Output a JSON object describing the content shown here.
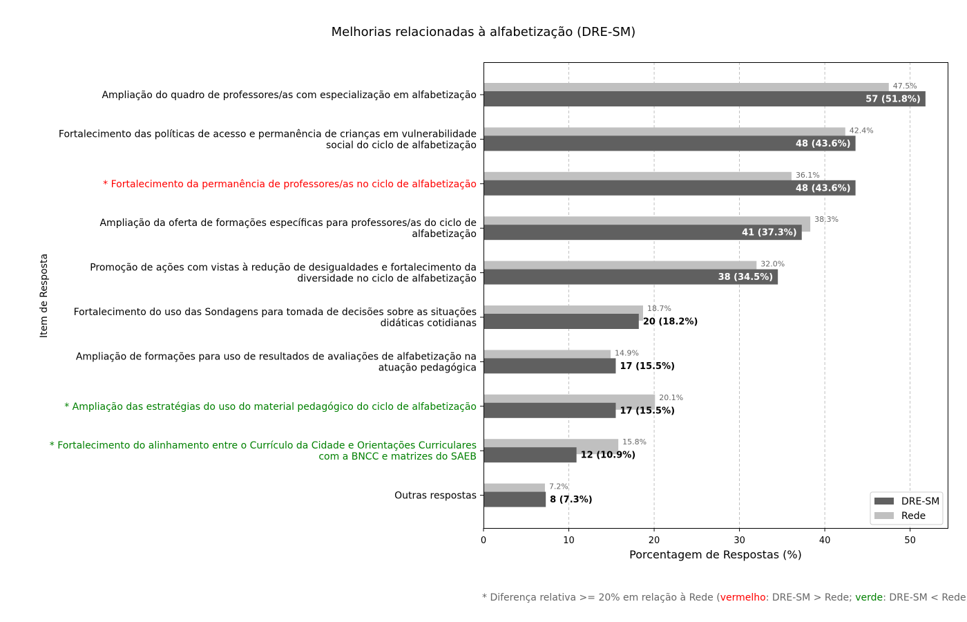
{
  "chart_data": {
    "type": "bar",
    "orientation": "horizontal",
    "title": "Melhorias relacionadas à alfabetização (DRE-SM)",
    "xlabel": "Porcentagem de Respostas (%)",
    "ylabel": "Item de Resposta",
    "xlim": [
      0,
      54.4
    ],
    "xticks": [
      0,
      10,
      20,
      30,
      40,
      50
    ],
    "grid": "x-dashed",
    "legend_position": "bottom-right",
    "categories": [
      {
        "lines": [
          "Ampliação do quadro de professores/as com especialização em alfabetização"
        ],
        "color": "#000000"
      },
      {
        "lines": [
          "Fortalecimento das políticas de acesso e permanência de crianças em vulnerabilidade",
          "social do ciclo de alfabetização"
        ],
        "color": "#000000"
      },
      {
        "lines": [
          "* Fortalecimento da permanência de professores/as no ciclo de alfabetização"
        ],
        "color": "#ff0000"
      },
      {
        "lines": [
          "Ampliação da oferta de formações específicas para professores/as do ciclo de",
          "alfabetização"
        ],
        "color": "#000000"
      },
      {
        "lines": [
          "Promoção de ações com vistas à redução de desigualdades e fortalecimento da",
          "diversidade no ciclo de alfabetização"
        ],
        "color": "#000000"
      },
      {
        "lines": [
          "Fortalecimento do uso das Sondagens para tomada de decisões sobre as situações",
          "didáticas cotidianas"
        ],
        "color": "#000000"
      },
      {
        "lines": [
          "Ampliação de formações para uso de resultados de avaliações de alfabetização na",
          "atuação pedagógica"
        ],
        "color": "#000000"
      },
      {
        "lines": [
          "* Ampliação das estratégias do uso do material pedagógico do ciclo de alfabetização"
        ],
        "color": "#008000"
      },
      {
        "lines": [
          "* Fortalecimento do alinhamento entre o Currículo da Cidade e Orientações Curriculares",
          "com a BNCC e matrizes do SAEB"
        ],
        "color": "#008000"
      },
      {
        "lines": [
          "Outras respostas"
        ],
        "color": "#000000"
      }
    ],
    "series": [
      {
        "name": "DRE-SM",
        "color": "#606060",
        "values": [
          51.8,
          43.6,
          43.6,
          37.3,
          34.5,
          18.2,
          15.5,
          15.5,
          10.9,
          7.3
        ],
        "labels": [
          "57 (51.8%)",
          "48 (43.6%)",
          "48 (43.6%)",
          "41 (37.3%)",
          "38 (34.5%)",
          "20 (18.2%)",
          "17 (15.5%)",
          "17 (15.5%)",
          "12 (10.9%)",
          "8 (7.3%)"
        ]
      },
      {
        "name": "Rede",
        "color": "#c0c0c0",
        "values": [
          47.5,
          42.4,
          36.1,
          38.3,
          32.0,
          18.7,
          14.9,
          20.1,
          15.8,
          7.2
        ],
        "labels": [
          "47.5%",
          "42.4%",
          "36.1%",
          "38.3%",
          "32.0%",
          "18.7%",
          "14.9%",
          "20.1%",
          "15.8%",
          "7.2%"
        ]
      }
    ]
  },
  "footnote": {
    "prefix": "* Diferença relativa >= 20% em relação à Rede (",
    "red_word": "vermelho",
    "middle": ": DRE-SM > Rede; ",
    "green_word": "verde",
    "suffix": ": DRE-SM < Rede)"
  }
}
